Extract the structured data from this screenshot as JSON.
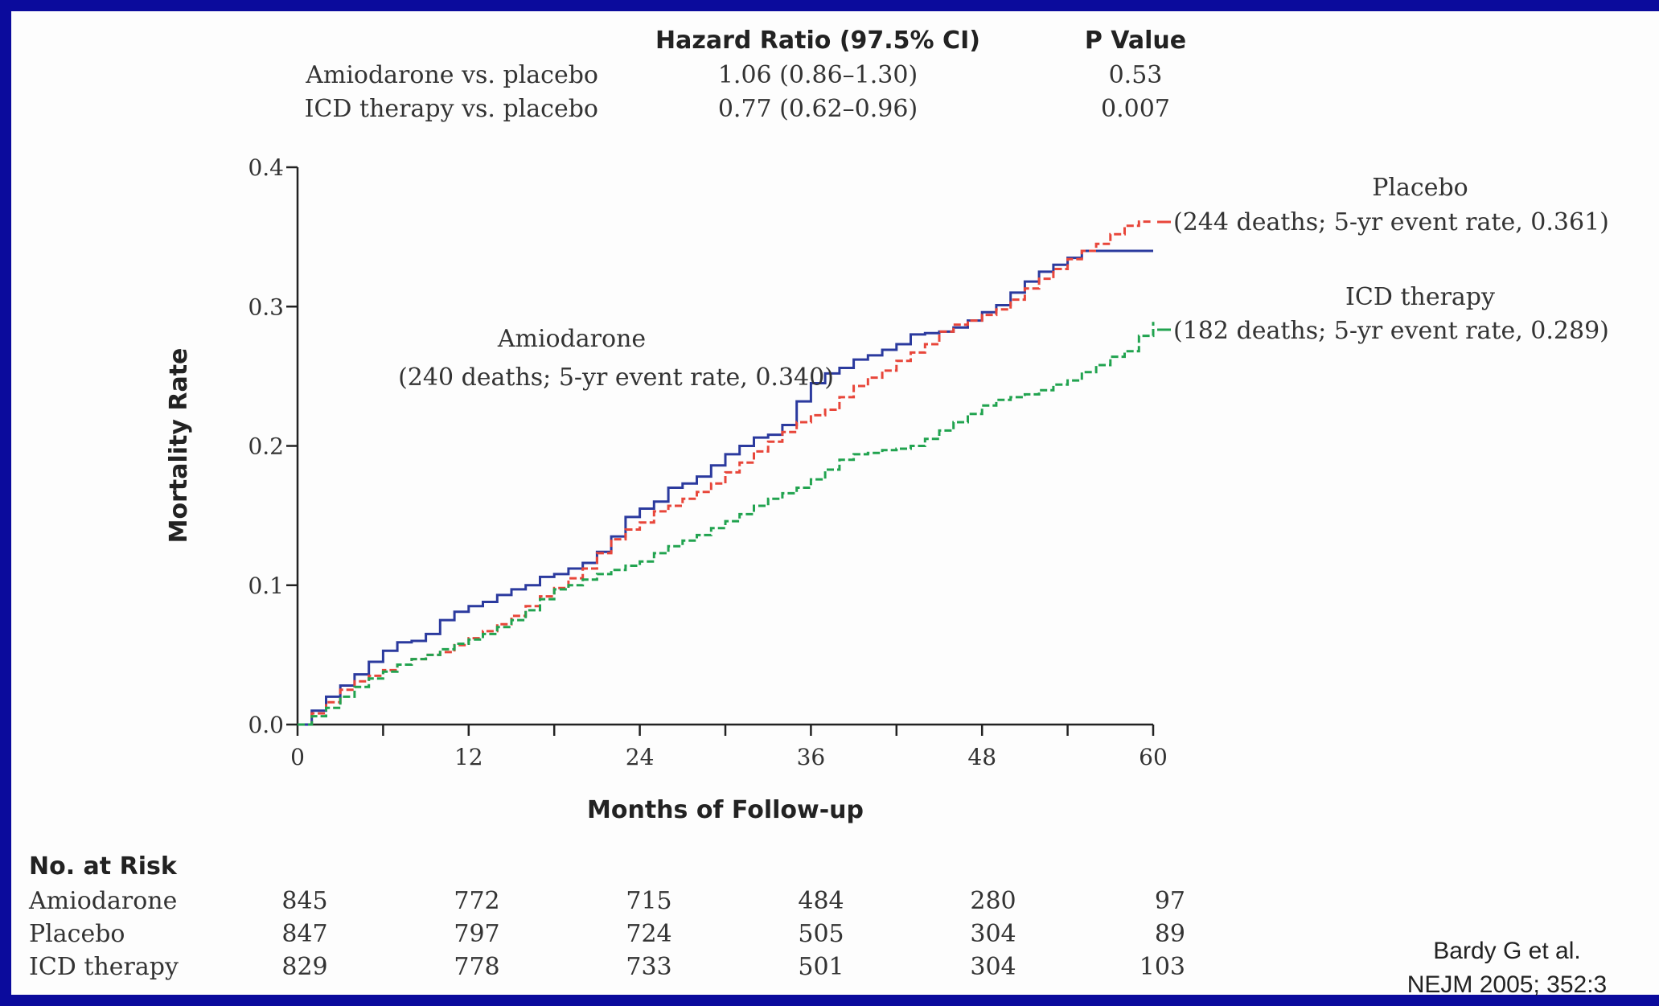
{
  "chart_data": {
    "type": "line",
    "xlabel": "Months of Follow-up",
    "ylabel": "Mortality Rate",
    "xlim": [
      0,
      60
    ],
    "ylim": [
      0,
      0.4
    ],
    "x_ticks": [
      0,
      12,
      24,
      36,
      48,
      60
    ],
    "y_ticks": [
      "0.0",
      "0.1",
      "0.2",
      "0.3",
      "0.4"
    ],
    "grid": false,
    "hr_table": {
      "headers": [
        "Hazard Ratio (97.5% CI)",
        "P Value"
      ],
      "rows": [
        {
          "label": "Amiodarone vs. placebo",
          "hr": "1.06 (0.86–1.30)",
          "p": "0.53"
        },
        {
          "label": "ICD therapy vs. placebo",
          "hr": "0.77 (0.62–0.96)",
          "p": "0.007"
        }
      ]
    },
    "series": [
      {
        "name": "Amiodarone",
        "note": "(240 deaths; 5-yr event rate, 0.340)",
        "color": "#2b3a9e",
        "style": "solid",
        "points": [
          [
            0,
            0
          ],
          [
            1,
            0.01
          ],
          [
            2,
            0.02
          ],
          [
            3,
            0.028
          ],
          [
            4,
            0.036
          ],
          [
            5,
            0.045
          ],
          [
            6,
            0.053
          ],
          [
            7,
            0.059
          ],
          [
            8,
            0.06
          ],
          [
            9,
            0.065
          ],
          [
            10,
            0.075
          ],
          [
            11,
            0.081
          ],
          [
            12,
            0.085
          ],
          [
            13,
            0.088
          ],
          [
            14,
            0.093
          ],
          [
            15,
            0.097
          ],
          [
            16,
            0.1
          ],
          [
            17,
            0.106
          ],
          [
            18,
            0.108
          ],
          [
            19,
            0.112
          ],
          [
            20,
            0.116
          ],
          [
            21,
            0.124
          ],
          [
            22,
            0.135
          ],
          [
            23,
            0.149
          ],
          [
            24,
            0.155
          ],
          [
            25,
            0.16
          ],
          [
            26,
            0.17
          ],
          [
            27,
            0.173
          ],
          [
            28,
            0.178
          ],
          [
            29,
            0.186
          ],
          [
            30,
            0.194
          ],
          [
            31,
            0.2
          ],
          [
            32,
            0.206
          ],
          [
            33,
            0.208
          ],
          [
            34,
            0.215
          ],
          [
            35,
            0.232
          ],
          [
            36,
            0.245
          ],
          [
            37,
            0.252
          ],
          [
            38,
            0.256
          ],
          [
            39,
            0.262
          ],
          [
            40,
            0.265
          ],
          [
            41,
            0.269
          ],
          [
            42,
            0.273
          ],
          [
            43,
            0.28
          ],
          [
            44,
            0.281
          ],
          [
            45,
            0.282
          ],
          [
            46,
            0.285
          ],
          [
            47,
            0.29
          ],
          [
            48,
            0.296
          ],
          [
            49,
            0.301
          ],
          [
            50,
            0.31
          ],
          [
            51,
            0.318
          ],
          [
            52,
            0.325
          ],
          [
            53,
            0.33
          ],
          [
            54,
            0.335
          ],
          [
            55,
            0.34
          ],
          [
            60,
            0.34
          ]
        ]
      },
      {
        "name": "Placebo",
        "note": "(244 deaths; 5-yr event rate, 0.361)",
        "color": "#e8463a",
        "style": "dashed",
        "points": [
          [
            0,
            0
          ],
          [
            1,
            0.008
          ],
          [
            2,
            0.016
          ],
          [
            3,
            0.025
          ],
          [
            4,
            0.031
          ],
          [
            5,
            0.035
          ],
          [
            6,
            0.039
          ],
          [
            7,
            0.043
          ],
          [
            8,
            0.047
          ],
          [
            9,
            0.05
          ],
          [
            10,
            0.052
          ],
          [
            11,
            0.057
          ],
          [
            12,
            0.062
          ],
          [
            13,
            0.067
          ],
          [
            14,
            0.072
          ],
          [
            15,
            0.078
          ],
          [
            16,
            0.085
          ],
          [
            17,
            0.092
          ],
          [
            18,
            0.098
          ],
          [
            19,
            0.105
          ],
          [
            20,
            0.112
          ],
          [
            21,
            0.123
          ],
          [
            22,
            0.133
          ],
          [
            23,
            0.14
          ],
          [
            24,
            0.145
          ],
          [
            25,
            0.153
          ],
          [
            26,
            0.157
          ],
          [
            27,
            0.162
          ],
          [
            28,
            0.167
          ],
          [
            29,
            0.173
          ],
          [
            30,
            0.181
          ],
          [
            31,
            0.188
          ],
          [
            32,
            0.196
          ],
          [
            33,
            0.203
          ],
          [
            34,
            0.21
          ],
          [
            35,
            0.217
          ],
          [
            36,
            0.222
          ],
          [
            37,
            0.226
          ],
          [
            38,
            0.235
          ],
          [
            39,
            0.243
          ],
          [
            40,
            0.249
          ],
          [
            41,
            0.254
          ],
          [
            42,
            0.261
          ],
          [
            43,
            0.267
          ],
          [
            44,
            0.273
          ],
          [
            45,
            0.282
          ],
          [
            46,
            0.287
          ],
          [
            47,
            0.29
          ],
          [
            48,
            0.294
          ],
          [
            49,
            0.298
          ],
          [
            50,
            0.305
          ],
          [
            51,
            0.313
          ],
          [
            52,
            0.32
          ],
          [
            53,
            0.327
          ],
          [
            54,
            0.334
          ],
          [
            55,
            0.34
          ],
          [
            56,
            0.345
          ],
          [
            57,
            0.352
          ],
          [
            58,
            0.358
          ],
          [
            59,
            0.361
          ],
          [
            60,
            0.361
          ]
        ]
      },
      {
        "name": "ICD therapy",
        "note": "(182 deaths; 5-yr event rate, 0.289)",
        "color": "#21a34f",
        "style": "dashed",
        "points": [
          [
            0,
            0
          ],
          [
            1,
            0.006
          ],
          [
            2,
            0.012
          ],
          [
            3,
            0.02
          ],
          [
            4,
            0.027
          ],
          [
            5,
            0.033
          ],
          [
            6,
            0.038
          ],
          [
            7,
            0.043
          ],
          [
            8,
            0.047
          ],
          [
            9,
            0.05
          ],
          [
            10,
            0.054
          ],
          [
            11,
            0.058
          ],
          [
            12,
            0.061
          ],
          [
            13,
            0.065
          ],
          [
            14,
            0.07
          ],
          [
            15,
            0.075
          ],
          [
            16,
            0.082
          ],
          [
            17,
            0.09
          ],
          [
            18,
            0.097
          ],
          [
            19,
            0.1
          ],
          [
            20,
            0.104
          ],
          [
            21,
            0.108
          ],
          [
            22,
            0.111
          ],
          [
            23,
            0.114
          ],
          [
            24,
            0.117
          ],
          [
            25,
            0.123
          ],
          [
            26,
            0.128
          ],
          [
            27,
            0.132
          ],
          [
            28,
            0.136
          ],
          [
            29,
            0.141
          ],
          [
            30,
            0.146
          ],
          [
            31,
            0.151
          ],
          [
            32,
            0.157
          ],
          [
            33,
            0.162
          ],
          [
            34,
            0.166
          ],
          [
            35,
            0.17
          ],
          [
            36,
            0.176
          ],
          [
            37,
            0.183
          ],
          [
            38,
            0.19
          ],
          [
            39,
            0.194
          ],
          [
            40,
            0.195
          ],
          [
            41,
            0.197
          ],
          [
            42,
            0.198
          ],
          [
            43,
            0.2
          ],
          [
            44,
            0.205
          ],
          [
            45,
            0.211
          ],
          [
            46,
            0.217
          ],
          [
            47,
            0.223
          ],
          [
            48,
            0.229
          ],
          [
            49,
            0.233
          ],
          [
            50,
            0.235
          ],
          [
            51,
            0.237
          ],
          [
            52,
            0.24
          ],
          [
            53,
            0.244
          ],
          [
            54,
            0.247
          ],
          [
            55,
            0.253
          ],
          [
            56,
            0.258
          ],
          [
            57,
            0.264
          ],
          [
            58,
            0.268
          ],
          [
            59,
            0.279
          ],
          [
            60,
            0.289
          ]
        ]
      }
    ],
    "at_risk": {
      "title": "No. at Risk",
      "rows": [
        {
          "label": "Amiodarone",
          "values": [
            845,
            772,
            715,
            484,
            280,
            97
          ]
        },
        {
          "label": "Placebo",
          "values": [
            847,
            797,
            724,
            505,
            304,
            89
          ]
        },
        {
          "label": "ICD therapy",
          "values": [
            829,
            778,
            733,
            501,
            304,
            103
          ]
        }
      ]
    }
  },
  "citation": {
    "line1": "Bardy G et al.",
    "line2": "NEJM 2005; 352:3"
  }
}
